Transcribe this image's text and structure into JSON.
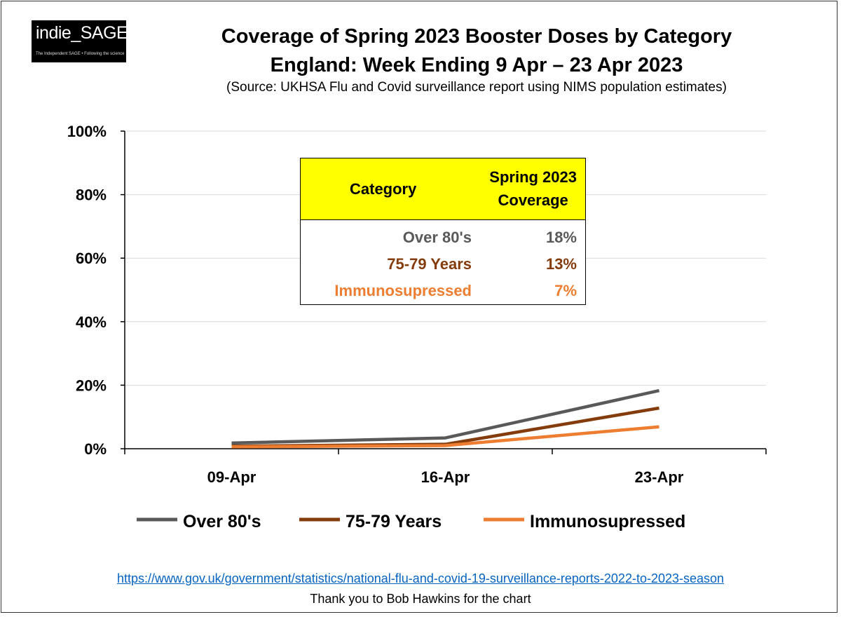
{
  "logo": {
    "name": "indie_SAGE",
    "tagline": "The Independent SAGE • Following the science"
  },
  "header": {
    "title_line1": "Coverage of Spring 2023 Booster Doses by Category",
    "title_line2": "England: Week Ending 9 Apr – 23 Apr 2023",
    "source": "(Source: UKHSA Flu and Covid surveillance report using NIMS population estimates)"
  },
  "chart_data": {
    "type": "line",
    "title": "Coverage of Spring 2023 Booster Doses by Category",
    "xlabel": "",
    "ylabel": "",
    "categories": [
      "09-Apr",
      "16-Apr",
      "23-Apr"
    ],
    "ylim": [
      0,
      100
    ],
    "yticks": [
      0,
      20,
      40,
      60,
      80,
      100
    ],
    "ytick_labels": [
      "0%",
      "20%",
      "40%",
      "60%",
      "80%",
      "100%"
    ],
    "grid": true,
    "legend_position": "bottom",
    "series": [
      {
        "name": "Over 80's",
        "values": [
          1.8,
          3.4,
          18.3
        ],
        "color": "#595959"
      },
      {
        "name": "75-79 Years",
        "values": [
          0.8,
          1.4,
          12.8
        ],
        "color": "#843c0c"
      },
      {
        "name": "Immunosupressed",
        "values": [
          0.6,
          1.0,
          6.9
        ],
        "color": "#ed7d31"
      }
    ]
  },
  "table": {
    "header_category": "Category",
    "header_coverage_line1": "Spring 2023",
    "header_coverage_line2": "Coverage",
    "rows": [
      {
        "category": "Over 80's",
        "coverage": "18%",
        "color": "#595959"
      },
      {
        "category": "75-79 Years",
        "coverage": "13%",
        "color": "#843c0c"
      },
      {
        "category": "Immunosupressed",
        "coverage": "7%",
        "color": "#ed7d31"
      }
    ]
  },
  "footer": {
    "link": "https://www.gov.uk/government/statistics/national-flu-and-covid-19-surveillance-reports-2022-to-2023-season",
    "credit": "Thank you to Bob Hawkins for the chart"
  }
}
